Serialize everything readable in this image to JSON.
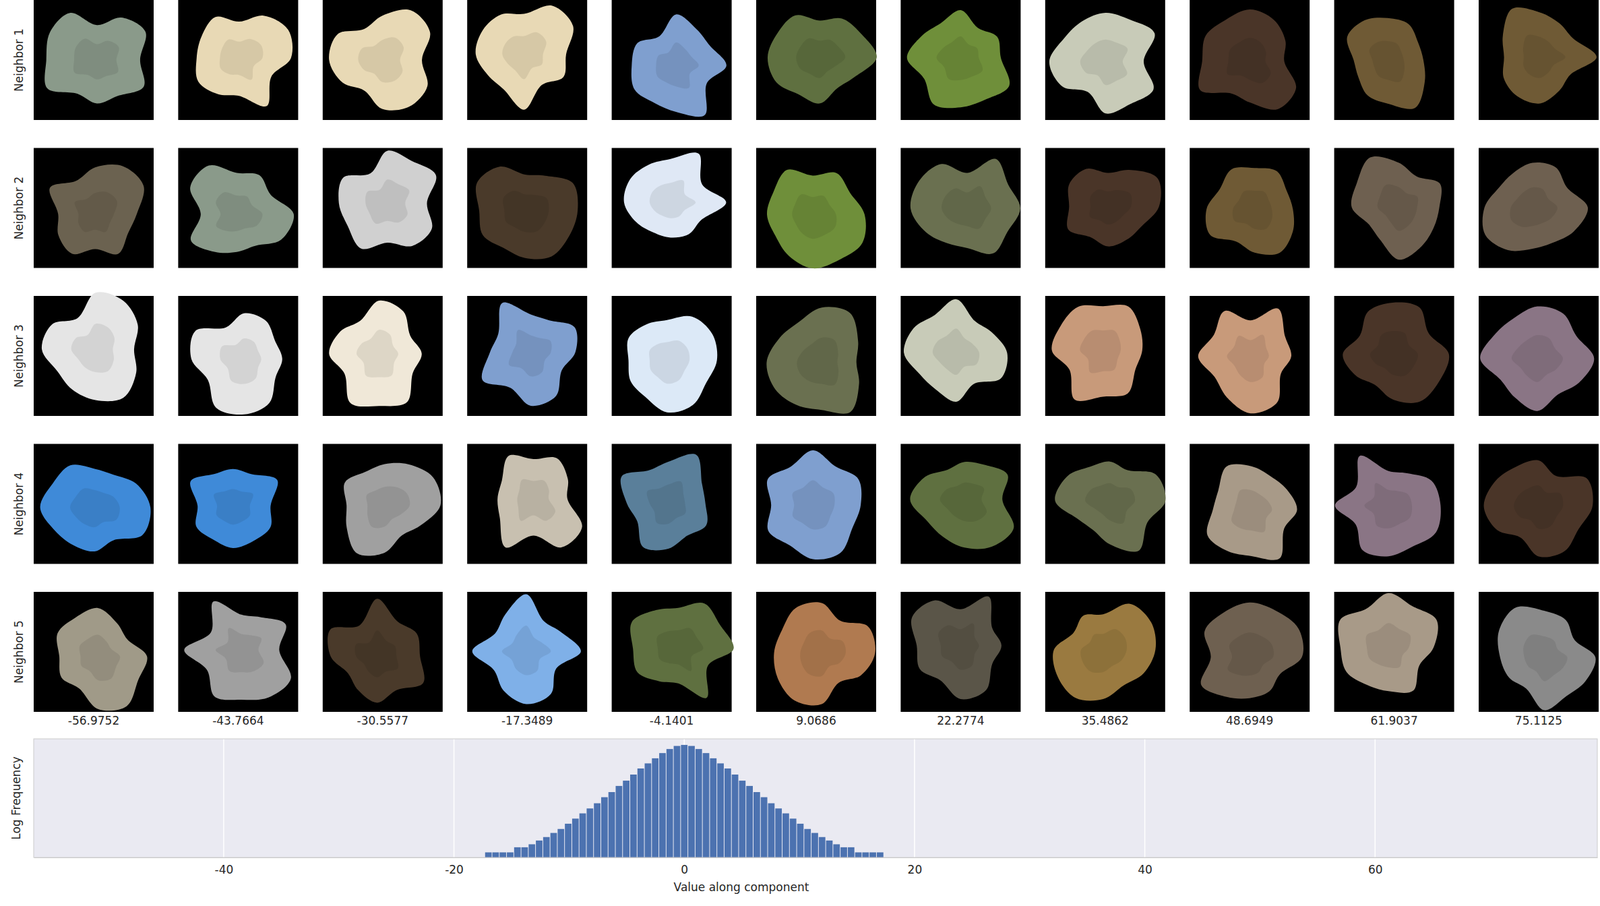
{
  "chart_data": {
    "type": "histogram",
    "rows": [
      "Neighbor 1",
      "Neighbor 2",
      "Neighbor 3",
      "Neighbor 4",
      "Neighbor 5"
    ],
    "columns": [
      -56.9752,
      -43.7664,
      -30.5577,
      -17.3489,
      -4.1401,
      9.0686,
      22.2774,
      35.4862,
      48.6949,
      61.9037,
      75.1125
    ],
    "xlabel": "Value along component",
    "ylabel": "Log Frequency",
    "bins": [
      -17.325,
      -16.695,
      -16.065,
      -15.435,
      -14.805,
      -14.175,
      -13.545,
      -12.915,
      -12.285,
      -11.655,
      -11.025,
      -10.395,
      -9.765,
      -9.135,
      -8.505,
      -7.875,
      -7.245,
      -6.615,
      -5.985,
      -5.355,
      -4.725,
      -4.095,
      -3.465,
      -2.835,
      -2.205,
      -1.575,
      -0.945,
      -0.315,
      0.315,
      0.945,
      1.575,
      2.205,
      2.835,
      3.465,
      4.095,
      4.725,
      5.355,
      5.985,
      6.615,
      7.245,
      7.875,
      8.505,
      9.135,
      9.765,
      10.395,
      11.025,
      11.655,
      12.285,
      12.915,
      13.545,
      14.175,
      14.805,
      15.435,
      16.065,
      16.695,
      17.325
    ],
    "counts": [
      1,
      1,
      1,
      1,
      2,
      2,
      3,
      5,
      8,
      14,
      24,
      49,
      98,
      200,
      390,
      790,
      1800,
      3600,
      8300,
      17000,
      39000,
      89000,
      178000,
      355000,
      720000,
      1250000,
      1900000,
      2180000,
      1900000,
      1250000,
      720000,
      355000,
      178000,
      89000,
      39000,
      17000,
      8300,
      3600,
      1800,
      790,
      390,
      200,
      98,
      49,
      24,
      14,
      8,
      5,
      3,
      2,
      2,
      1,
      1,
      1,
      1
    ],
    "xlim": [
      -56.5,
      79.3
    ],
    "xticks": [
      -40,
      -20,
      0,
      20,
      40,
      60
    ],
    "ylim": [
      0.5,
      5000000
    ],
    "log": "y",
    "grid": true,
    "tick_labels": "x",
    "color": "#4c72b0"
  }
}
